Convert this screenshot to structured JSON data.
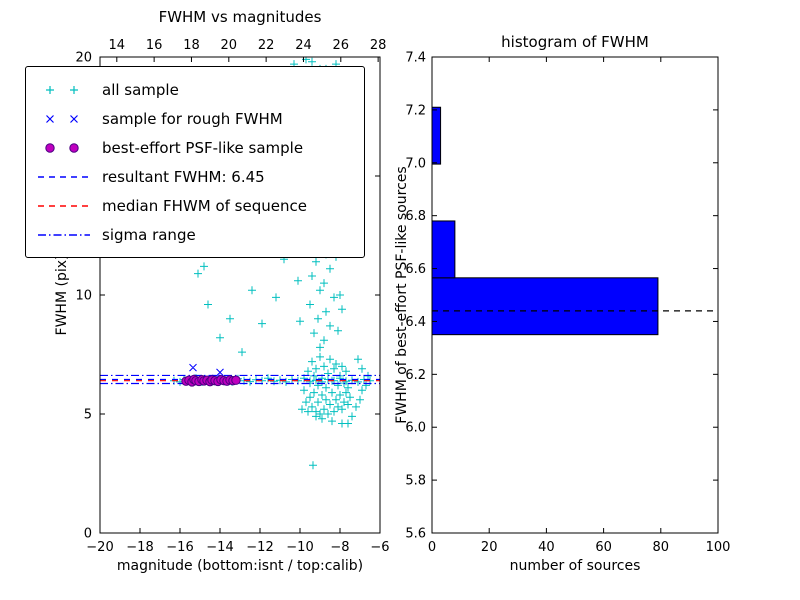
{
  "figure": {
    "background": "#ffffff"
  },
  "chart_data": [
    {
      "id": "fwhm_vs_magnitudes",
      "type": "scatter",
      "title": "FWHM vs magnitudes",
      "xlabel": "magnitude (bottom:isnt / top:calib)",
      "ylabel": "FWHM (pix)",
      "xlim": [
        -20,
        -6
      ],
      "top_xlim": [
        13.1,
        28.1
      ],
      "ylim": [
        0,
        20
      ],
      "xticks": {
        "values": [
          -20,
          -18,
          -16,
          -14,
          -12,
          -10,
          -8,
          -6
        ],
        "labels": [
          "−20",
          "−18",
          "−16",
          "−14",
          "−12",
          "−10",
          "−8",
          "−6"
        ]
      },
      "top_xticks": {
        "values": [
          14,
          16,
          18,
          20,
          22,
          24,
          26,
          28
        ],
        "labels": [
          "14",
          "16",
          "18",
          "20",
          "22",
          "24",
          "26",
          "28"
        ]
      },
      "yticks": {
        "values": [
          0,
          5,
          10,
          15,
          20
        ],
        "labels": [
          "0",
          "5",
          "10",
          "15",
          "20"
        ]
      },
      "series": [
        {
          "name": "all sample",
          "marker": "plus",
          "color": "#00bfbf",
          "points": [
            [
              -16.3,
              6.4
            ],
            [
              -16.0,
              6.35
            ],
            [
              -15.8,
              6.45
            ],
            [
              -15.5,
              6.4
            ],
            [
              -15.2,
              6.5
            ],
            [
              -14.9,
              6.35
            ],
            [
              -14.6,
              6.42
            ],
            [
              -14.3,
              6.38
            ],
            [
              -14.0,
              6.45
            ],
            [
              -13.7,
              6.4
            ],
            [
              -13.4,
              6.35
            ],
            [
              -13.1,
              6.48
            ],
            [
              -12.8,
              6.4
            ],
            [
              -12.5,
              6.36
            ],
            [
              -12.2,
              6.44
            ],
            [
              -11.9,
              6.4
            ],
            [
              -11.6,
              6.5
            ],
            [
              -11.3,
              6.38
            ],
            [
              -11.0,
              6.42
            ],
            [
              -10.7,
              6.35
            ],
            [
              -10.4,
              6.45
            ],
            [
              -10.1,
              6.4
            ],
            [
              -9.8,
              6.5
            ],
            [
              -9.5,
              6.38
            ],
            [
              -9.2,
              6.42
            ],
            [
              -8.9,
              6.35
            ],
            [
              -8.6,
              6.45
            ],
            [
              -8.3,
              6.4
            ],
            [
              -8.0,
              6.5
            ],
            [
              -7.7,
              6.38
            ],
            [
              -7.4,
              6.42
            ],
            [
              -7.1,
              6.35
            ],
            [
              -6.8,
              6.45
            ],
            [
              -6.5,
              6.4
            ],
            [
              -15.3,
              12.8
            ],
            [
              -15.1,
              10.9
            ],
            [
              -14.8,
              11.2
            ],
            [
              -14.6,
              9.6
            ],
            [
              -14.3,
              13.1
            ],
            [
              -14.0,
              8.2
            ],
            [
              -13.8,
              15.0
            ],
            [
              -13.5,
              9.0
            ],
            [
              -13.2,
              11.8
            ],
            [
              -12.9,
              7.6
            ],
            [
              -12.7,
              13.9
            ],
            [
              -12.4,
              10.2
            ],
            [
              -12.1,
              15.8
            ],
            [
              -11.9,
              8.8
            ],
            [
              -11.7,
              12.4
            ],
            [
              -11.4,
              16.5
            ],
            [
              -11.2,
              9.9
            ],
            [
              -11.0,
              14.2
            ],
            [
              -10.8,
              11.5
            ],
            [
              -10.6,
              17.3
            ],
            [
              -10.3,
              19.7
            ],
            [
              -9.9,
              19.2
            ],
            [
              -9.4,
              19.8
            ],
            [
              -9.0,
              19.5
            ],
            [
              -10.1,
              18.4
            ],
            [
              -9.6,
              18.8
            ],
            [
              -9.9,
              5.2
            ],
            [
              -9.8,
              6.0
            ],
            [
              -9.7,
              5.5
            ],
            [
              -9.6,
              6.8
            ],
            [
              -9.6,
              5.1
            ],
            [
              -9.5,
              6.3
            ],
            [
              -9.5,
              5.7
            ],
            [
              -9.4,
              7.2
            ],
            [
              -9.4,
              5.3
            ],
            [
              -9.3,
              6.6
            ],
            [
              -9.3,
              5.9
            ],
            [
              -9.2,
              5.1
            ],
            [
              -9.2,
              6.9
            ],
            [
              -9.1,
              5.5
            ],
            [
              -9.1,
              6.2
            ],
            [
              -9.0,
              5.0
            ],
            [
              -9.0,
              7.4
            ],
            [
              -8.9,
              5.8
            ],
            [
              -8.9,
              6.5
            ],
            [
              -8.8,
              5.2
            ],
            [
              -8.8,
              7.0
            ],
            [
              -8.7,
              5.6
            ],
            [
              -8.7,
              6.1
            ],
            [
              -8.6,
              5.0
            ],
            [
              -8.6,
              6.7
            ],
            [
              -8.5,
              5.4
            ],
            [
              -8.5,
              7.3
            ],
            [
              -8.4,
              5.9
            ],
            [
              -8.4,
              6.4
            ],
            [
              -8.3,
              5.1
            ],
            [
              -8.3,
              6.9
            ],
            [
              -8.2,
              5.6
            ],
            [
              -8.2,
              7.1
            ],
            [
              -8.1,
              5.3
            ],
            [
              -8.1,
              6.2
            ],
            [
              -8.0,
              5.8
            ],
            [
              -8.0,
              6.6
            ],
            [
              -7.9,
              5.2
            ],
            [
              -7.9,
              7.0
            ],
            [
              -7.8,
              5.5
            ],
            [
              -7.8,
              6.3
            ],
            [
              -7.7,
              5.9
            ],
            [
              -7.7,
              6.8
            ],
            [
              -7.6,
              5.4
            ],
            [
              -7.6,
              6.1
            ],
            [
              -7.5,
              5.7
            ],
            [
              -8.9,
              4.8
            ],
            [
              -8.4,
              4.7
            ],
            [
              -7.9,
              4.6
            ],
            [
              -9.2,
              4.9
            ],
            [
              -9.0,
              7.8
            ],
            [
              -8.8,
              8.1
            ],
            [
              -9.3,
              8.4
            ],
            [
              -8.5,
              8.7
            ],
            [
              -9.1,
              9.0
            ],
            [
              -8.7,
              9.3
            ],
            [
              -9.5,
              9.6
            ],
            [
              -8.3,
              9.9
            ],
            [
              -9.0,
              10.2
            ],
            [
              -8.8,
              10.5
            ],
            [
              -9.4,
              10.8
            ],
            [
              -8.5,
              11.1
            ],
            [
              -9.2,
              11.4
            ],
            [
              -8.7,
              11.7
            ],
            [
              -9.6,
              12.0
            ],
            [
              -8.4,
              12.3
            ],
            [
              -9.0,
              12.6
            ],
            [
              -8.9,
              12.9
            ],
            [
              -9.3,
              13.2
            ],
            [
              -8.6,
              13.5
            ],
            [
              -9.1,
              13.8
            ],
            [
              -8.8,
              14.1
            ],
            [
              -9.5,
              14.4
            ],
            [
              -8.3,
              14.7
            ],
            [
              -9.0,
              15.0
            ],
            [
              -8.7,
              15.3
            ],
            [
              -9.4,
              15.6
            ],
            [
              -8.5,
              15.9
            ],
            [
              -9.1,
              16.2
            ],
            [
              -8.8,
              16.5
            ],
            [
              -9.6,
              16.8
            ],
            [
              -8.4,
              17.1
            ],
            [
              -9.2,
              17.4
            ],
            [
              -8.6,
              17.7
            ],
            [
              -9.0,
              18.0
            ],
            [
              -8.9,
              18.3
            ],
            [
              -9.4,
              18.6
            ],
            [
              -8.5,
              18.9
            ],
            [
              -9.1,
              19.2
            ],
            [
              -8.7,
              19.5
            ],
            [
              -10.0,
              8.9
            ],
            [
              -10.1,
              10.6
            ],
            [
              -9.9,
              12.2
            ],
            [
              -10.2,
              13.8
            ],
            [
              -9.8,
              15.4
            ],
            [
              -10.1,
              17.0
            ],
            [
              -9.9,
              18.6
            ],
            [
              -8.1,
              8.5
            ],
            [
              -8.0,
              10.0
            ],
            [
              -8.2,
              11.6
            ],
            [
              -8.0,
              13.2
            ],
            [
              -8.1,
              14.8
            ],
            [
              -8.2,
              16.4
            ],
            [
              -8.0,
              18.0
            ],
            [
              -7.9,
              9.4
            ],
            [
              -7.8,
              12.0
            ],
            [
              -7.9,
              14.6
            ],
            [
              -7.8,
              17.2
            ],
            [
              -9.7,
              19.9
            ],
            [
              -8.2,
              19.7
            ],
            [
              -7.4,
              4.9
            ],
            [
              -7.2,
              5.3
            ],
            [
              -7.0,
              5.6
            ],
            [
              -6.9,
              6.0
            ],
            [
              -7.6,
              4.6
            ],
            [
              -6.7,
              6.2
            ],
            [
              -9.35,
              2.85
            ],
            [
              -6.6,
              6.6
            ],
            [
              -6.9,
              6.9
            ],
            [
              -7.1,
              7.3
            ]
          ]
        },
        {
          "name": "sample for rough FWHM",
          "marker": "x",
          "color": "#0000ff",
          "points": [
            [
              -15.35,
              6.95
            ],
            [
              -15.1,
              6.5
            ],
            [
              -14.8,
              6.45
            ],
            [
              -14.5,
              6.4
            ],
            [
              -14.2,
              6.5
            ],
            [
              -13.9,
              6.42
            ],
            [
              -13.6,
              6.38
            ],
            [
              -13.4,
              6.45
            ],
            [
              -15.5,
              6.4
            ],
            [
              -14.0,
              6.75
            ]
          ]
        },
        {
          "name": "best-effort PSF-like sample",
          "marker": "circle",
          "color": "#bf00bf",
          "edge": "#4b0082",
          "points": [
            [
              -15.7,
              6.38
            ],
            [
              -15.55,
              6.42
            ],
            [
              -15.4,
              6.35
            ],
            [
              -15.3,
              6.45
            ],
            [
              -15.2,
              6.4
            ],
            [
              -15.05,
              6.37
            ],
            [
              -14.9,
              6.44
            ],
            [
              -14.8,
              6.39
            ],
            [
              -14.65,
              6.42
            ],
            [
              -14.5,
              6.36
            ],
            [
              -14.4,
              6.43
            ],
            [
              -14.25,
              6.4
            ],
            [
              -14.1,
              6.37
            ],
            [
              -13.95,
              6.44
            ],
            [
              -13.8,
              6.4
            ],
            [
              -13.65,
              6.38
            ],
            [
              -13.5,
              6.43
            ],
            [
              -13.35,
              6.4
            ],
            [
              -13.2,
              6.42
            ]
          ]
        }
      ],
      "hlines": [
        {
          "name": "resultant FWHM",
          "y": 6.45,
          "color": "#0000ff",
          "style": "dashed"
        },
        {
          "name": "median FHWM of sequence",
          "y": 6.4,
          "color": "#ff0000",
          "style": "dashed"
        },
        {
          "name": "sigma range upper",
          "y": 6.62,
          "color": "#0000ff",
          "style": "dashdot"
        },
        {
          "name": "sigma range lower",
          "y": 6.28,
          "color": "#0000ff",
          "style": "dashdot"
        }
      ],
      "legend": {
        "position": "upper left",
        "items": [
          {
            "label": "all sample",
            "glyph": "plus",
            "color": "#00bfbf"
          },
          {
            "label": "sample for rough FWHM",
            "glyph": "x",
            "color": "#0000ff"
          },
          {
            "label": "best-effort PSF-like sample",
            "glyph": "circle",
            "color": "#bf00bf",
            "edge": "#4b0082"
          },
          {
            "label": "resultant FWHM: 6.45",
            "glyph": "dashed-line",
            "color": "#0000ff"
          },
          {
            "label": "median FHWM of sequence",
            "glyph": "dashed-line",
            "color": "#ff0000"
          },
          {
            "label": "sigma range",
            "glyph": "dashdot-line",
            "color": "#0000ff"
          }
        ]
      }
    },
    {
      "id": "histogram_of_fwhm",
      "type": "bar",
      "orientation": "horizontal",
      "title": "histogram of FWHM",
      "xlabel": "number of sources",
      "ylabel": "FWHM of best-effort PSF-like sources",
      "xlim": [
        0,
        100
      ],
      "ylim": [
        5.6,
        7.4
      ],
      "xticks": {
        "values": [
          0,
          20,
          40,
          60,
          80,
          100
        ],
        "labels": [
          "0",
          "20",
          "40",
          "60",
          "80",
          "100"
        ]
      },
      "yticks": {
        "values": [
          5.6,
          5.8,
          6.0,
          6.2,
          6.4,
          6.6,
          6.8,
          7.0,
          7.2,
          7.4
        ],
        "labels": [
          "5.6",
          "5.8",
          "6.0",
          "6.2",
          "6.4",
          "6.6",
          "6.8",
          "7.0",
          "7.2",
          "7.4"
        ]
      },
      "bar_color": "#0000ff",
      "bar_edge_color": "#000000",
      "bars": [
        {
          "y_from": 6.35,
          "y_to": 6.565,
          "count": 79
        },
        {
          "y_from": 6.565,
          "y_to": 6.78,
          "count": 8
        },
        {
          "y_from": 6.78,
          "y_to": 6.995,
          "count": 0
        },
        {
          "y_from": 6.995,
          "y_to": 7.21,
          "count": 3
        }
      ],
      "dashed_line": {
        "y": 6.44,
        "color": "#000000"
      }
    }
  ]
}
